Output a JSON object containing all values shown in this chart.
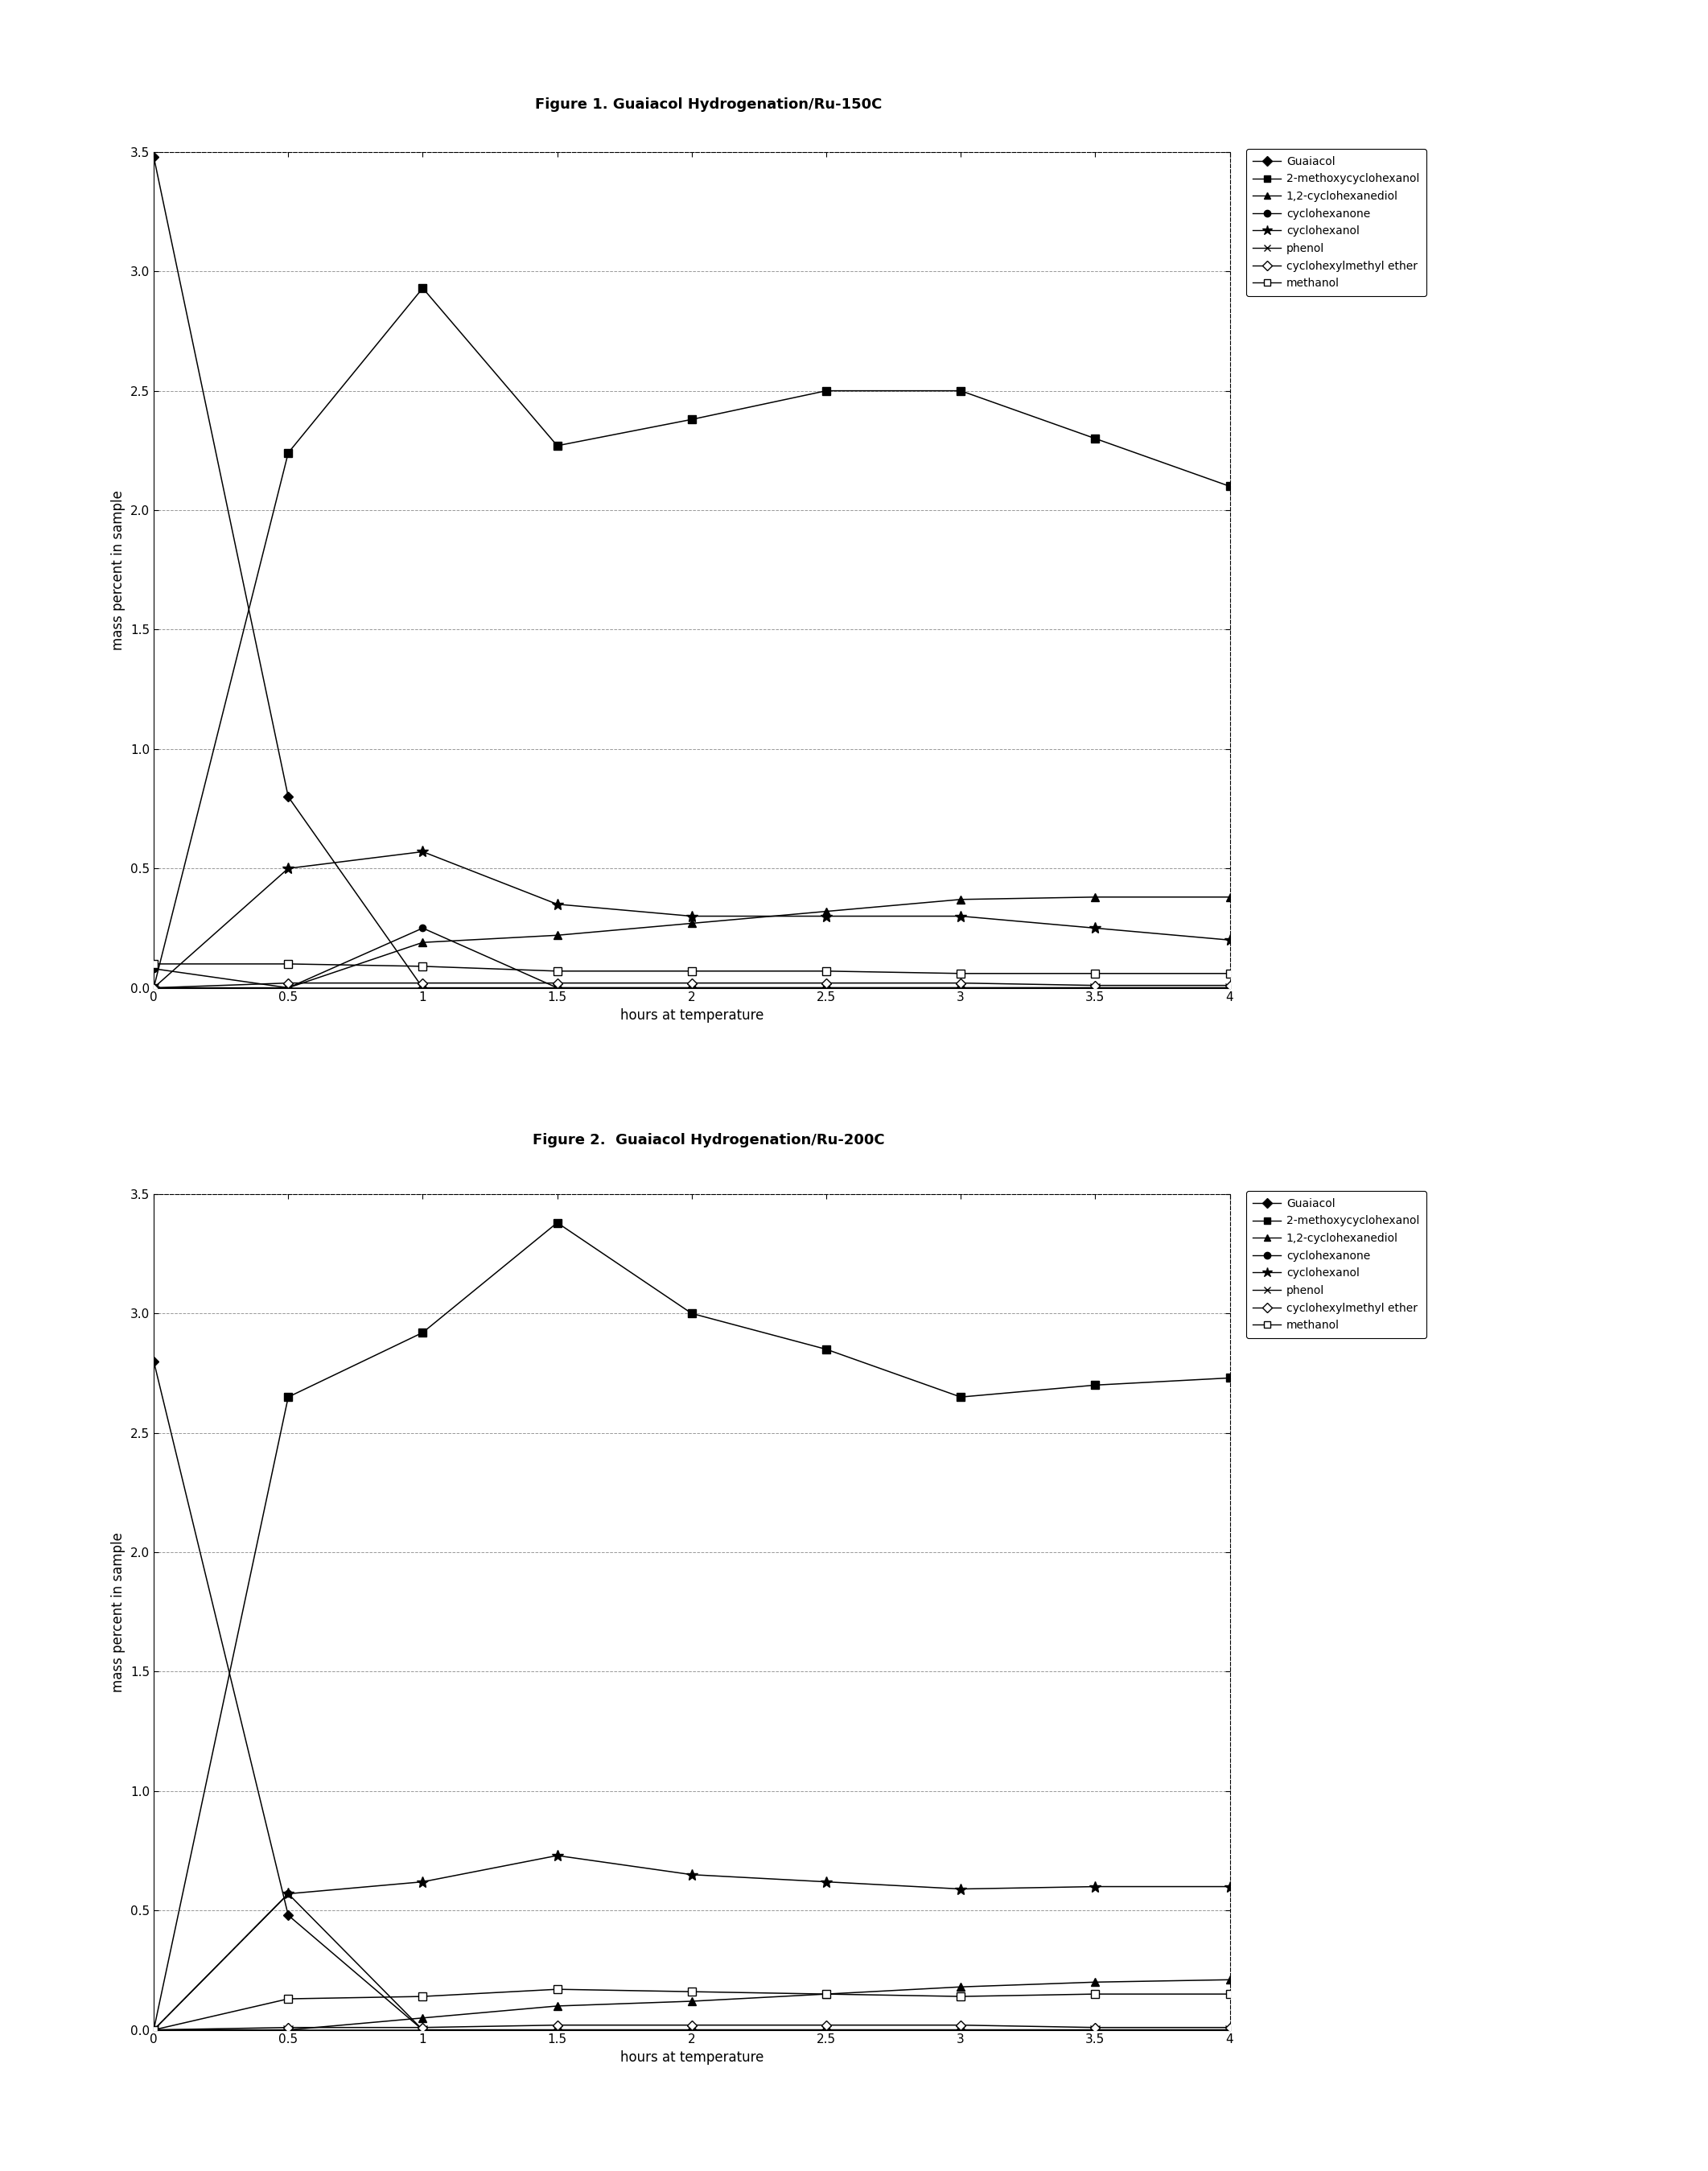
{
  "fig1": {
    "title": "Figure 1. Guaiacol Hydrogenation/Ru-150C",
    "xlabel": "hours at temperature",
    "ylabel": "mass percent in sample",
    "xlim": [
      0,
      4
    ],
    "ylim": [
      0,
      3.5
    ],
    "xticks": [
      0,
      0.5,
      1.0,
      1.5,
      2.0,
      2.5,
      3.0,
      3.5,
      4.0
    ],
    "yticks": [
      0,
      0.5,
      1.0,
      1.5,
      2.0,
      2.5,
      3.0,
      3.5
    ],
    "series": {
      "Guaiacol": {
        "x": [
          0,
          0.5,
          1.0,
          1.5,
          2.0,
          2.5,
          3.0,
          3.5,
          4.0
        ],
        "y": [
          3.48,
          0.8,
          0.0,
          0.0,
          0.0,
          0.0,
          0.0,
          0.0,
          0.0
        ],
        "marker": "D",
        "markersize": 6,
        "markerfacecolor": "black"
      },
      "2-methoxycyclohexanol": {
        "x": [
          0,
          0.5,
          1.0,
          1.5,
          2.0,
          2.5,
          3.0,
          3.5,
          4.0
        ],
        "y": [
          0.0,
          2.24,
          2.93,
          2.27,
          2.38,
          2.5,
          2.5,
          2.3,
          2.1
        ],
        "marker": "s",
        "markersize": 7,
        "markerfacecolor": "black"
      },
      "1,2-cyclohexanediol": {
        "x": [
          0,
          0.5,
          1.0,
          1.5,
          2.0,
          2.5,
          3.0,
          3.5,
          4.0
        ],
        "y": [
          0.0,
          0.0,
          0.19,
          0.22,
          0.27,
          0.32,
          0.37,
          0.38,
          0.38
        ],
        "marker": "^",
        "markersize": 7,
        "markerfacecolor": "black"
      },
      "cyclohexanone": {
        "x": [
          0,
          0.5,
          1.0,
          1.5,
          2.0,
          2.5,
          3.0,
          3.5,
          4.0
        ],
        "y": [
          0.08,
          0.0,
          0.25,
          0.0,
          0.0,
          0.0,
          0.0,
          0.0,
          0.0
        ],
        "marker": "o",
        "markersize": 6,
        "markerfacecolor": "black"
      },
      "cyclohexanol": {
        "x": [
          0,
          0.5,
          1.0,
          1.5,
          2.0,
          2.5,
          3.0,
          3.5,
          4.0
        ],
        "y": [
          0.0,
          0.5,
          0.57,
          0.35,
          0.3,
          0.3,
          0.3,
          0.25,
          0.2
        ],
        "marker": "*",
        "markersize": 10,
        "markerfacecolor": "black"
      },
      "phenol": {
        "x": [
          0,
          0.5,
          1.0,
          1.5,
          2.0,
          2.5,
          3.0,
          3.5,
          4.0
        ],
        "y": [
          0.0,
          0.0,
          0.0,
          0.0,
          0.0,
          0.0,
          0.0,
          0.0,
          0.0
        ],
        "marker": "x",
        "markersize": 8,
        "markerfacecolor": "black"
      },
      "cyclohexylmethyl ether": {
        "x": [
          0,
          0.5,
          1.0,
          1.5,
          2.0,
          2.5,
          3.0,
          3.5,
          4.0
        ],
        "y": [
          0.0,
          0.02,
          0.02,
          0.02,
          0.02,
          0.02,
          0.02,
          0.01,
          0.01
        ],
        "marker": "D",
        "markersize": 6,
        "markerfacecolor": "white"
      },
      "methanol": {
        "x": [
          0,
          0.5,
          1.0,
          1.5,
          2.0,
          2.5,
          3.0,
          3.5,
          4.0
        ],
        "y": [
          0.1,
          0.1,
          0.09,
          0.07,
          0.07,
          0.07,
          0.06,
          0.06,
          0.06
        ],
        "marker": "s",
        "markersize": 7,
        "markerfacecolor": "white"
      }
    }
  },
  "fig2": {
    "title": "Figure 2.  Guaiacol Hydrogenation/Ru-200C",
    "xlabel": "hours at temperature",
    "ylabel": "mass percent in sample",
    "xlim": [
      0,
      4
    ],
    "ylim": [
      0,
      3.5
    ],
    "xticks": [
      0,
      0.5,
      1.0,
      1.5,
      2.0,
      2.5,
      3.0,
      3.5,
      4.0
    ],
    "yticks": [
      0,
      0.5,
      1.0,
      1.5,
      2.0,
      2.5,
      3.0,
      3.5
    ],
    "series": {
      "Guaiacol": {
        "x": [
          0,
          0.5,
          1.0,
          1.5,
          2.0,
          2.5,
          3.0,
          3.5,
          4.0
        ],
        "y": [
          2.8,
          0.48,
          0.0,
          0.0,
          0.0,
          0.0,
          0.0,
          0.0,
          0.0
        ],
        "marker": "D",
        "markersize": 6,
        "markerfacecolor": "black"
      },
      "2-methoxycyclohexanol": {
        "x": [
          0,
          0.5,
          1.0,
          1.5,
          2.0,
          2.5,
          3.0,
          3.5,
          4.0
        ],
        "y": [
          0.0,
          2.65,
          2.92,
          3.38,
          3.0,
          2.85,
          2.65,
          2.7,
          2.73
        ],
        "marker": "s",
        "markersize": 7,
        "markerfacecolor": "black"
      },
      "1,2-cyclohexanediol": {
        "x": [
          0,
          0.5,
          1.0,
          1.5,
          2.0,
          2.5,
          3.0,
          3.5,
          4.0
        ],
        "y": [
          0.0,
          0.0,
          0.05,
          0.1,
          0.12,
          0.15,
          0.18,
          0.2,
          0.21
        ],
        "marker": "^",
        "markersize": 7,
        "markerfacecolor": "black"
      },
      "cyclohexanone": {
        "x": [
          0,
          0.5,
          1.0,
          1.5,
          2.0,
          2.5,
          3.0,
          3.5,
          4.0
        ],
        "y": [
          0.0,
          0.57,
          0.0,
          0.0,
          0.0,
          0.0,
          0.0,
          0.0,
          0.0
        ],
        "marker": "o",
        "markersize": 6,
        "markerfacecolor": "black"
      },
      "cyclohexanol": {
        "x": [
          0,
          0.5,
          1.0,
          1.5,
          2.0,
          2.5,
          3.0,
          3.5,
          4.0
        ],
        "y": [
          0.0,
          0.57,
          0.62,
          0.73,
          0.65,
          0.62,
          0.59,
          0.6,
          0.6
        ],
        "marker": "*",
        "markersize": 10,
        "markerfacecolor": "black"
      },
      "phenol": {
        "x": [
          0,
          0.5,
          1.0,
          1.5,
          2.0,
          2.5,
          3.0,
          3.5,
          4.0
        ],
        "y": [
          0.0,
          0.0,
          0.0,
          0.0,
          0.0,
          0.0,
          0.0,
          0.0,
          0.0
        ],
        "marker": "x",
        "markersize": 8,
        "markerfacecolor": "black"
      },
      "cyclohexylmethyl ether": {
        "x": [
          0,
          0.5,
          1.0,
          1.5,
          2.0,
          2.5,
          3.0,
          3.5,
          4.0
        ],
        "y": [
          0.0,
          0.01,
          0.01,
          0.02,
          0.02,
          0.02,
          0.02,
          0.01,
          0.01
        ],
        "marker": "D",
        "markersize": 6,
        "markerfacecolor": "white"
      },
      "methanol": {
        "x": [
          0,
          0.5,
          1.0,
          1.5,
          2.0,
          2.5,
          3.0,
          3.5,
          4.0
        ],
        "y": [
          0.0,
          0.13,
          0.14,
          0.17,
          0.16,
          0.15,
          0.14,
          0.15,
          0.15
        ],
        "marker": "s",
        "markersize": 7,
        "markerfacecolor": "white"
      }
    }
  },
  "legend_labels": [
    "Guaiacol",
    "2-methoxycyclohexanol",
    "1,2-cyclohexanediol",
    "cyclohexanone",
    "cyclohexanol",
    "phenol",
    "cyclohexylmethyl ether",
    "methanol"
  ],
  "markers_info": {
    "Guaiacol": [
      "D",
      "black"
    ],
    "2-methoxycyclohexanol": [
      "s",
      "black"
    ],
    "1,2-cyclohexanediol": [
      "^",
      "black"
    ],
    "cyclohexanone": [
      "o",
      "black"
    ],
    "cyclohexanol": [
      "*",
      "black"
    ],
    "phenol": [
      "x",
      "black"
    ],
    "cyclohexylmethyl ether": [
      "D",
      "white"
    ],
    "methanol": [
      "s",
      "white"
    ]
  },
  "background_color": "#ffffff"
}
